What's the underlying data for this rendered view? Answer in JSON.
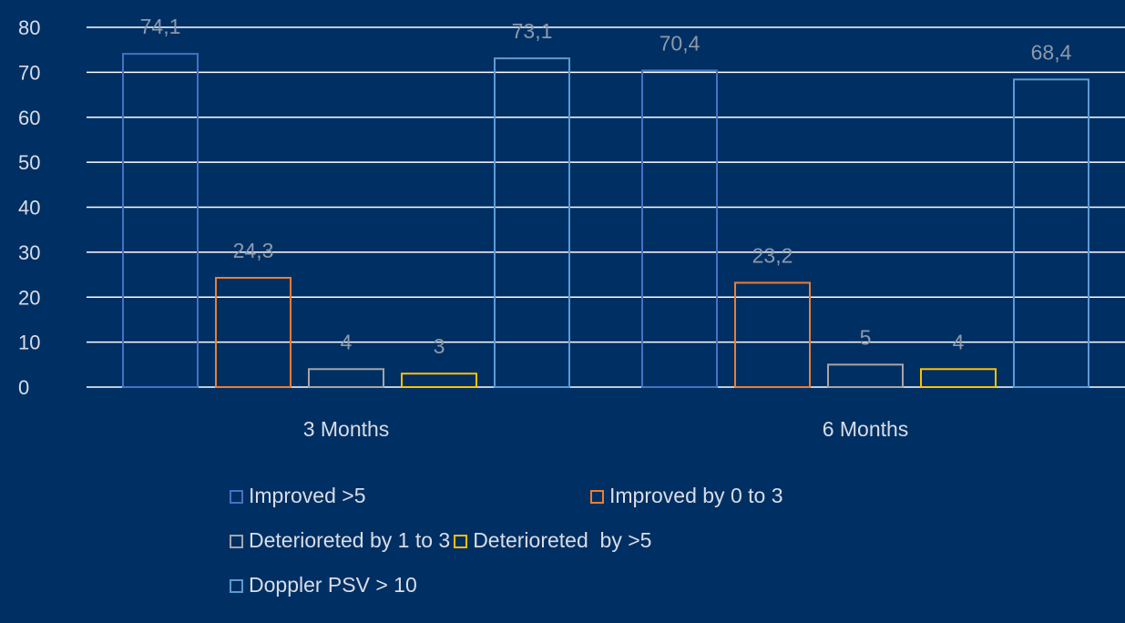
{
  "chart_data": {
    "type": "bar",
    "categories": [
      "3 Months",
      "6 Months"
    ],
    "series": [
      {
        "name": "Improved >5",
        "values": [
          74.1,
          70.4
        ],
        "labels": [
          "74,1",
          "70,4"
        ],
        "color": "#4472c4"
      },
      {
        "name": "Improved by 0 to 3",
        "values": [
          24.3,
          23.2
        ],
        "labels": [
          "24,3",
          "23,2"
        ],
        "color": "#ed7d31"
      },
      {
        "name": "Deterioreted by 1 to 3",
        "values": [
          4,
          5
        ],
        "labels": [
          "4",
          "5"
        ],
        "color": "#a5a5a5"
      },
      {
        "name": "Deterioreted  by >5",
        "values": [
          3,
          4
        ],
        "labels": [
          "3",
          "4"
        ],
        "color": "#ffc000"
      },
      {
        "name": "Doppler PSV > 10",
        "values": [
          73.1,
          68.4
        ],
        "labels": [
          "73,1",
          "68,4"
        ],
        "color": "#5b9bd5"
      }
    ],
    "yticks": [
      "0",
      "10",
      "20",
      "30",
      "40",
      "50",
      "60",
      "70",
      "80"
    ],
    "ylim": [
      0,
      80
    ],
    "grid": true,
    "legend_position": "bottom"
  }
}
